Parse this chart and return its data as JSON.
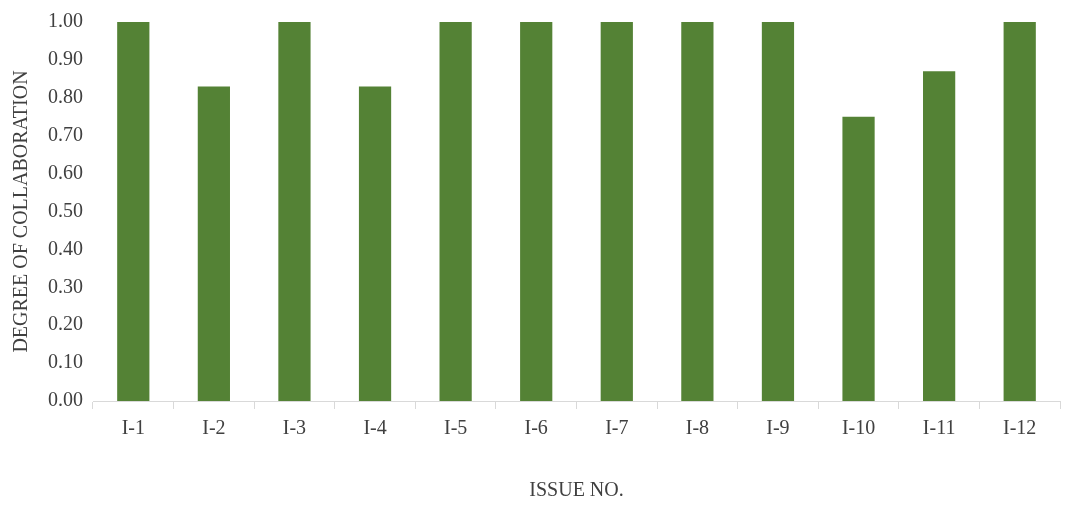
{
  "chart_data": {
    "type": "bar",
    "xlabel": "ISSUE NO.",
    "ylabel": "DEGREE OF COLLABORATION",
    "categories": [
      "I-1",
      "I-2",
      "I-3",
      "I-4",
      "I-5",
      "I-6",
      "I-7",
      "I-8",
      "I-9",
      "I-10",
      "I-11",
      "I-12"
    ],
    "values": [
      1.0,
      0.83,
      1.0,
      0.83,
      1.0,
      1.0,
      1.0,
      1.0,
      1.0,
      0.75,
      0.87,
      1.0
    ],
    "color": "#548235",
    "ylim": [
      0,
      1
    ],
    "yticks": [
      {
        "value": 0,
        "label": "0.00"
      },
      {
        "value": 0.1,
        "label": "0.10"
      },
      {
        "value": 0.2,
        "label": "0.20"
      },
      {
        "value": 0.3,
        "label": "0.30"
      },
      {
        "value": 0.4,
        "label": "0.40"
      },
      {
        "value": 0.5,
        "label": "0.50"
      },
      {
        "value": 0.6,
        "label": "0.60"
      },
      {
        "value": 0.7,
        "label": "0.70"
      },
      {
        "value": 0.8,
        "label": "0.80"
      },
      {
        "value": 0.9,
        "label": "0.90"
      },
      {
        "value": 1,
        "label": "1.00"
      }
    ],
    "grid": false,
    "legend": false
  }
}
